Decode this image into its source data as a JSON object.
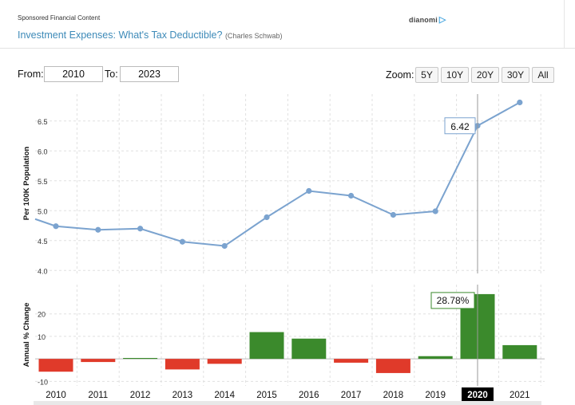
{
  "sponsor": {
    "label": "Sponsored Financial Content",
    "brand": "dianomi",
    "link_text": "Investment Expenses: What's Tax Deductible?",
    "link_source": "(Charles Schwab)"
  },
  "toolbar": {
    "from_label": "From:",
    "from_value": "2010",
    "to_label": "To:",
    "to_value": "2023",
    "zoom_label": "Zoom:",
    "zoom_buttons": [
      "5Y",
      "10Y",
      "20Y",
      "30Y",
      "All"
    ]
  },
  "colors": {
    "line": "#7ba3cf",
    "positive": "#3b8a2c",
    "negative": "#e03a2a",
    "grid": "#e0e0e0"
  },
  "chart_data": [
    {
      "type": "line",
      "ylabel": "Per 100K Population",
      "x": [
        2009.8,
        2010,
        2011,
        2012,
        2013,
        2014,
        2015,
        2016,
        2017,
        2018,
        2019,
        2020,
        2021
      ],
      "values": [
        4.86,
        4.74,
        4.68,
        4.7,
        4.48,
        4.41,
        4.89,
        5.33,
        5.25,
        4.93,
        4.99,
        6.42,
        6.81
      ],
      "yticks": [
        4.0,
        4.5,
        5.0,
        5.5,
        6.0,
        6.5
      ],
      "ylim": [
        3.95,
        6.95
      ],
      "tooltip": {
        "x": 2020,
        "label": "6.42"
      }
    },
    {
      "type": "bar",
      "ylabel": "Annual % Change",
      "categories": [
        "2010",
        "2011",
        "2012",
        "2013",
        "2014",
        "2015",
        "2016",
        "2017",
        "2018",
        "2019",
        "2020",
        "2021"
      ],
      "values": [
        -5.7,
        -1.4,
        0.4,
        -4.7,
        -2.2,
        11.9,
        9.0,
        -1.7,
        -6.3,
        1.2,
        28.78,
        6.1
      ],
      "yticks": [
        -10,
        10,
        20
      ],
      "ylim": [
        -12,
        33
      ],
      "tooltip": {
        "x": "2020",
        "label": "28.78%"
      },
      "highlight": "2020"
    }
  ]
}
